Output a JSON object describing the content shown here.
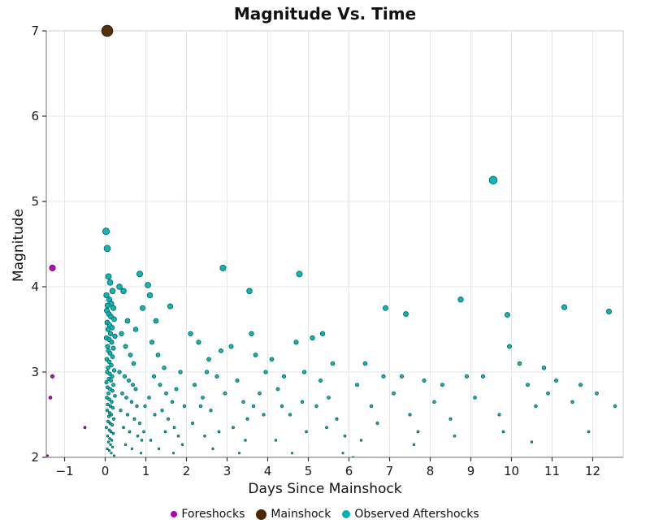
{
  "chart_data": {
    "type": "scatter",
    "title": "Magnitude Vs. Time",
    "xlabel": "Days Since Mainshock",
    "ylabel": "Magnitude",
    "xlim": [
      -1.45,
      12.75
    ],
    "ylim": [
      2,
      7
    ],
    "xticks": [
      -1,
      0,
      1,
      2,
      3,
      4,
      5,
      6,
      7,
      8,
      9,
      10,
      11,
      12
    ],
    "yticks": [
      2,
      3,
      4,
      5,
      6,
      7
    ],
    "grid": true,
    "grid_color": "#e7e7e7",
    "legend_position": "bottom",
    "series": [
      {
        "name": "Foreshocks",
        "color": "#b100b1",
        "edge": "#6e006e",
        "points": [
          [
            -1.3,
            4.22
          ],
          [
            -1.3,
            2.95
          ],
          [
            -1.35,
            2.7
          ],
          [
            -0.5,
            2.35
          ],
          [
            -1.42,
            2.02
          ]
        ]
      },
      {
        "name": "Mainshock",
        "color": "#4a2700",
        "edge": "#1f1000",
        "points": [
          [
            0.05,
            7.0
          ]
        ]
      },
      {
        "name": "Observed Aftershocks",
        "color": "#00b3b3",
        "edge": "#045d5d",
        "points": [
          [
            0.02,
            4.65
          ],
          [
            0.05,
            4.45
          ],
          [
            0.08,
            4.12
          ],
          [
            0.12,
            4.05
          ],
          [
            0.18,
            3.95
          ],
          [
            0.03,
            3.9
          ],
          [
            0.1,
            3.85
          ],
          [
            0.15,
            3.8
          ],
          [
            0.06,
            3.78
          ],
          [
            0.2,
            3.75
          ],
          [
            0.04,
            3.72
          ],
          [
            0.09,
            3.68
          ],
          [
            0.14,
            3.65
          ],
          [
            0.22,
            3.62
          ],
          [
            0.05,
            3.58
          ],
          [
            0.11,
            3.55
          ],
          [
            0.17,
            3.52
          ],
          [
            0.07,
            3.5
          ],
          [
            0.13,
            3.45
          ],
          [
            0.24,
            3.42
          ],
          [
            0.03,
            3.4
          ],
          [
            0.1,
            3.38
          ],
          [
            0.16,
            3.35
          ],
          [
            0.06,
            3.3
          ],
          [
            0.2,
            3.28
          ],
          [
            0.08,
            3.25
          ],
          [
            0.12,
            3.22
          ],
          [
            0.18,
            3.18
          ],
          [
            0.04,
            3.15
          ],
          [
            0.1,
            3.12
          ],
          [
            0.15,
            3.08
          ],
          [
            0.07,
            3.05
          ],
          [
            0.22,
            3.02
          ],
          [
            0.05,
            3.0
          ],
          [
            0.11,
            2.98
          ],
          [
            0.17,
            2.95
          ],
          [
            0.09,
            2.92
          ],
          [
            0.14,
            2.9
          ],
          [
            0.03,
            2.88
          ],
          [
            0.2,
            2.85
          ],
          [
            0.06,
            2.82
          ],
          [
            0.12,
            2.8
          ],
          [
            0.18,
            2.78
          ],
          [
            0.08,
            2.75
          ],
          [
            0.24,
            2.72
          ],
          [
            0.04,
            2.7
          ],
          [
            0.1,
            2.68
          ],
          [
            0.16,
            2.65
          ],
          [
            0.06,
            2.62
          ],
          [
            0.13,
            2.6
          ],
          [
            0.19,
            2.58
          ],
          [
            0.05,
            2.55
          ],
          [
            0.11,
            2.52
          ],
          [
            0.15,
            2.5
          ],
          [
            0.09,
            2.48
          ],
          [
            0.21,
            2.45
          ],
          [
            0.07,
            2.42
          ],
          [
            0.12,
            2.4
          ],
          [
            0.17,
            2.38
          ],
          [
            0.03,
            2.35
          ],
          [
            0.1,
            2.32
          ],
          [
            0.14,
            2.3
          ],
          [
            0.2,
            2.28
          ],
          [
            0.06,
            2.25
          ],
          [
            0.11,
            2.22
          ],
          [
            0.16,
            2.2
          ],
          [
            0.08,
            2.18
          ],
          [
            0.13,
            2.15
          ],
          [
            0.18,
            2.12
          ],
          [
            0.05,
            2.1
          ],
          [
            0.1,
            2.08
          ],
          [
            0.15,
            2.05
          ],
          [
            0.22,
            2.02
          ],
          [
            0.35,
            4.0
          ],
          [
            0.45,
            3.95
          ],
          [
            0.85,
            4.15
          ],
          [
            0.92,
            3.75
          ],
          [
            0.55,
            3.6
          ],
          [
            0.75,
            3.5
          ],
          [
            0.4,
            3.45
          ],
          [
            0.5,
            3.3
          ],
          [
            0.62,
            3.2
          ],
          [
            0.7,
            3.1
          ],
          [
            0.35,
            3.0
          ],
          [
            0.48,
            2.95
          ],
          [
            0.58,
            2.9
          ],
          [
            0.68,
            2.85
          ],
          [
            0.75,
            2.8
          ],
          [
            0.42,
            2.75
          ],
          [
            0.52,
            2.7
          ],
          [
            0.65,
            2.65
          ],
          [
            0.78,
            2.6
          ],
          [
            0.98,
            2.6
          ],
          [
            0.38,
            2.55
          ],
          [
            0.55,
            2.5
          ],
          [
            0.72,
            2.45
          ],
          [
            0.85,
            2.4
          ],
          [
            0.45,
            2.35
          ],
          [
            0.6,
            2.3
          ],
          [
            0.95,
            2.3
          ],
          [
            0.8,
            2.25
          ],
          [
            0.9,
            2.2
          ],
          [
            0.5,
            2.15
          ],
          [
            0.66,
            2.1
          ],
          [
            0.88,
            2.05
          ],
          [
            1.05,
            4.02
          ],
          [
            1.1,
            3.9
          ],
          [
            1.6,
            3.77
          ],
          [
            1.25,
            3.6
          ],
          [
            1.15,
            3.35
          ],
          [
            1.3,
            3.2
          ],
          [
            1.45,
            3.05
          ],
          [
            1.85,
            3.0
          ],
          [
            1.2,
            2.95
          ],
          [
            1.35,
            2.85
          ],
          [
            1.75,
            2.8
          ],
          [
            1.5,
            2.75
          ],
          [
            1.08,
            2.7
          ],
          [
            1.65,
            2.65
          ],
          [
            1.95,
            2.6
          ],
          [
            1.4,
            2.55
          ],
          [
            1.22,
            2.5
          ],
          [
            1.55,
            2.45
          ],
          [
            1.7,
            2.35
          ],
          [
            1.48,
            2.3
          ],
          [
            1.8,
            2.25
          ],
          [
            1.12,
            2.2
          ],
          [
            1.9,
            2.15
          ],
          [
            1.32,
            2.1
          ],
          [
            1.68,
            2.05
          ],
          [
            2.9,
            4.22
          ],
          [
            2.1,
            3.45
          ],
          [
            2.3,
            3.35
          ],
          [
            2.85,
            3.25
          ],
          [
            2.55,
            3.15
          ],
          [
            2.5,
            3.0
          ],
          [
            2.75,
            2.95
          ],
          [
            2.2,
            2.85
          ],
          [
            2.95,
            2.75
          ],
          [
            2.4,
            2.7
          ],
          [
            2.35,
            2.6
          ],
          [
            2.6,
            2.55
          ],
          [
            2.15,
            2.4
          ],
          [
            2.8,
            2.3
          ],
          [
            2.45,
            2.25
          ],
          [
            2.65,
            2.1
          ],
          [
            3.55,
            3.95
          ],
          [
            3.6,
            3.45
          ],
          [
            3.1,
            3.3
          ],
          [
            3.7,
            3.2
          ],
          [
            3.95,
            3.0
          ],
          [
            3.25,
            2.9
          ],
          [
            3.8,
            2.75
          ],
          [
            3.4,
            2.65
          ],
          [
            3.65,
            2.6
          ],
          [
            3.9,
            2.5
          ],
          [
            3.5,
            2.45
          ],
          [
            3.15,
            2.35
          ],
          [
            3.45,
            2.2
          ],
          [
            3.3,
            2.05
          ],
          [
            4.78,
            4.15
          ],
          [
            4.7,
            3.35
          ],
          [
            4.1,
            3.15
          ],
          [
            4.9,
            3.0
          ],
          [
            4.4,
            2.95
          ],
          [
            4.25,
            2.8
          ],
          [
            4.85,
            2.65
          ],
          [
            4.35,
            2.6
          ],
          [
            4.55,
            2.5
          ],
          [
            4.95,
            2.3
          ],
          [
            4.2,
            2.2
          ],
          [
            4.6,
            2.05
          ],
          [
            5.35,
            3.45
          ],
          [
            5.1,
            3.4
          ],
          [
            5.6,
            3.1
          ],
          [
            5.3,
            2.9
          ],
          [
            5.5,
            2.7
          ],
          [
            5.2,
            2.6
          ],
          [
            5.7,
            2.45
          ],
          [
            5.45,
            2.35
          ],
          [
            5.9,
            2.25
          ],
          [
            5.85,
            2.05
          ],
          [
            6.9,
            3.75
          ],
          [
            6.4,
            3.1
          ],
          [
            6.85,
            2.95
          ],
          [
            6.2,
            2.85
          ],
          [
            6.55,
            2.6
          ],
          [
            6.7,
            2.4
          ],
          [
            6.3,
            2.2
          ],
          [
            6.1,
            2.0
          ],
          [
            7.4,
            3.68
          ],
          [
            7.3,
            2.95
          ],
          [
            7.85,
            2.9
          ],
          [
            7.1,
            2.75
          ],
          [
            7.5,
            2.5
          ],
          [
            7.7,
            2.3
          ],
          [
            7.6,
            2.15
          ],
          [
            8.75,
            3.85
          ],
          [
            8.9,
            2.95
          ],
          [
            8.3,
            2.85
          ],
          [
            8.1,
            2.65
          ],
          [
            8.5,
            2.45
          ],
          [
            8.6,
            2.25
          ],
          [
            9.55,
            5.25
          ],
          [
            9.9,
            3.67
          ],
          [
            9.95,
            3.3
          ],
          [
            9.3,
            2.95
          ],
          [
            9.1,
            2.7
          ],
          [
            9.7,
            2.5
          ],
          [
            9.8,
            2.3
          ],
          [
            10.2,
            3.1
          ],
          [
            10.8,
            3.05
          ],
          [
            10.4,
            2.85
          ],
          [
            10.9,
            2.75
          ],
          [
            10.6,
            2.6
          ],
          [
            10.5,
            2.18
          ],
          [
            11.3,
            3.76
          ],
          [
            11.1,
            2.9
          ],
          [
            11.7,
            2.85
          ],
          [
            11.5,
            2.65
          ],
          [
            11.9,
            2.3
          ],
          [
            12.4,
            3.71
          ],
          [
            12.1,
            2.75
          ],
          [
            12.55,
            2.6
          ]
        ]
      }
    ]
  }
}
